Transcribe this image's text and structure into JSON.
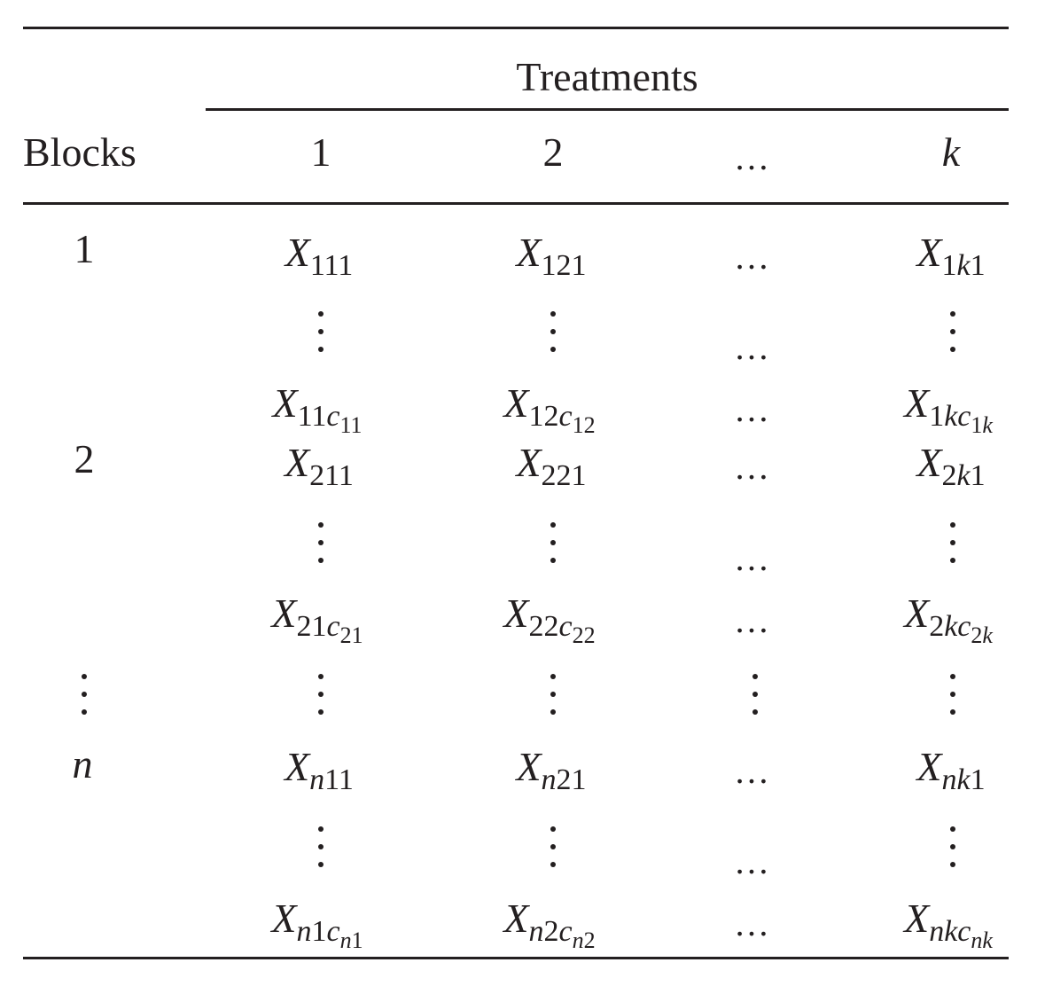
{
  "header": {
    "group_label": "Treatments",
    "row_label": "Blocks",
    "columns": [
      "1",
      "2",
      "…",
      "k"
    ]
  },
  "symbols": {
    "hellipsis": "…",
    "X": "X"
  },
  "blocks": [
    "1",
    "2",
    "n"
  ],
  "cells": {
    "r1_first": {
      "c1": "111",
      "c2": "121",
      "ck_pre": "1",
      "ck_it": "k",
      "ck_post": "1"
    },
    "r1_last": {
      "c1_pre": "11",
      "c1_it": "c",
      "c1_sub": "11",
      "c2_pre": "12",
      "c2_it": "c",
      "c2_sub": "12",
      "ck_pre": "1",
      "ck_it": "kc",
      "ck_sub_pre": "1",
      "ck_sub_it": "k"
    },
    "r2_first": {
      "c1": "211",
      "c2": "221",
      "ck_pre": "2",
      "ck_it": "k",
      "ck_post": "1"
    },
    "r2_last": {
      "c1_pre": "21",
      "c1_it": "c",
      "c1_sub": "21",
      "c2_pre": "22",
      "c2_it": "c",
      "c2_sub": "22",
      "ck_pre": "2",
      "ck_it": "kc",
      "ck_sub_pre": "2",
      "ck_sub_it": "k"
    },
    "rn_first": {
      "c1_it": "n",
      "c1_post": "11",
      "c2_it": "n",
      "c2_post": "21",
      "ck_it": "nk",
      "ck_post": "1"
    },
    "rn_last": {
      "c1_it": "n",
      "c1_mid": "1",
      "c1_c": "c",
      "c1_sub_it": "n",
      "c1_sub_post": "1",
      "c2_it": "n",
      "c2_mid": "2",
      "c2_c": "c",
      "c2_sub_it": "n",
      "c2_sub_post": "2",
      "ck_it": "nkc",
      "ck_sub_it": "nk"
    }
  }
}
